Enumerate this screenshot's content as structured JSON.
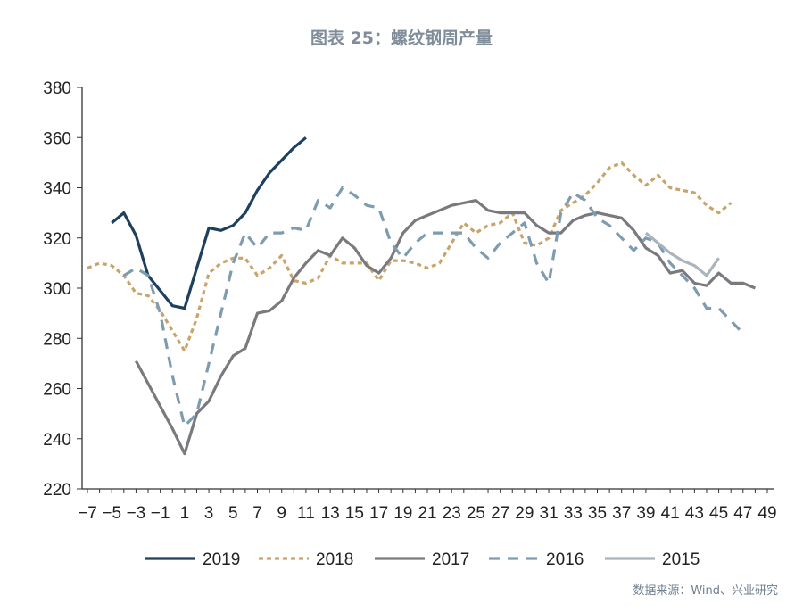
{
  "title": "图表 25：螺纹钢周产量",
  "source": "数据来源：Wind、兴业研究",
  "chart_data": {
    "type": "line",
    "title": "图表 25：螺纹钢周产量",
    "xlabel": "",
    "ylabel": "",
    "xlim": [
      -7,
      49
    ],
    "ylim": [
      220,
      380
    ],
    "x_ticks": [
      -7,
      -5,
      -3,
      -1,
      1,
      3,
      5,
      7,
      9,
      11,
      13,
      15,
      17,
      19,
      21,
      23,
      25,
      27,
      29,
      31,
      33,
      35,
      37,
      39,
      41,
      43,
      45,
      47,
      49
    ],
    "y_ticks": [
      220,
      240,
      260,
      280,
      300,
      320,
      340,
      360,
      380
    ],
    "grid": false,
    "legend": "bottom",
    "series": [
      {
        "name": "2019",
        "color": "#1f3f5f",
        "dash": "solid",
        "x_start": -5,
        "values": [
          326,
          330,
          321,
          305,
          299,
          293,
          292,
          308,
          324,
          323,
          325,
          330,
          339,
          346,
          351,
          356,
          360
        ]
      },
      {
        "name": "2018",
        "color": "#c9a46a",
        "dash": "dotted",
        "x_start": -7,
        "values": [
          308,
          310,
          309,
          305,
          298,
          297,
          291,
          283,
          275,
          288,
          306,
          310,
          312,
          312,
          305,
          308,
          313,
          303,
          302,
          304,
          313,
          310,
          310,
          310,
          303,
          311,
          311,
          310,
          308,
          310,
          318,
          326,
          322,
          325,
          326,
          330,
          318,
          317,
          320,
          331,
          334,
          337,
          342,
          348,
          350,
          345,
          341,
          345,
          340,
          339,
          338,
          333,
          330,
          334
        ]
      },
      {
        "name": "2017",
        "color": "#7a7a7e",
        "dash": "solid",
        "x_start": -3,
        "values": [
          271,
          262,
          253,
          244,
          234,
          250,
          255,
          265,
          273,
          276,
          290,
          291,
          295,
          304,
          310,
          315,
          313,
          320,
          316,
          309,
          306,
          312,
          322,
          327,
          329,
          331,
          333,
          334,
          335,
          331,
          330,
          330,
          330,
          325,
          322,
          322,
          327,
          329,
          330,
          329,
          328,
          323,
          316,
          313,
          306,
          307,
          302,
          301,
          306,
          302,
          302,
          300
        ]
      },
      {
        "name": "2016",
        "color": "#7d9cb0",
        "dash": "dashed",
        "x_start": -4,
        "values": [
          305,
          308,
          305,
          290,
          265,
          245,
          250,
          270,
          290,
          310,
          322,
          316,
          322,
          322,
          324,
          323,
          335,
          332,
          340,
          337,
          333,
          332,
          318,
          312,
          318,
          322,
          322,
          322,
          322,
          316,
          312,
          318,
          322,
          326,
          310,
          302,
          330,
          338,
          335,
          328,
          325,
          320,
          315,
          320,
          318,
          310,
          305,
          300,
          292,
          292,
          287,
          282
        ]
      },
      {
        "name": "2015",
        "color": "#a9b4bc",
        "dash": "solid",
        "x_start": 39,
        "values": [
          322,
          318,
          314,
          311,
          309,
          305,
          312
        ]
      }
    ]
  }
}
